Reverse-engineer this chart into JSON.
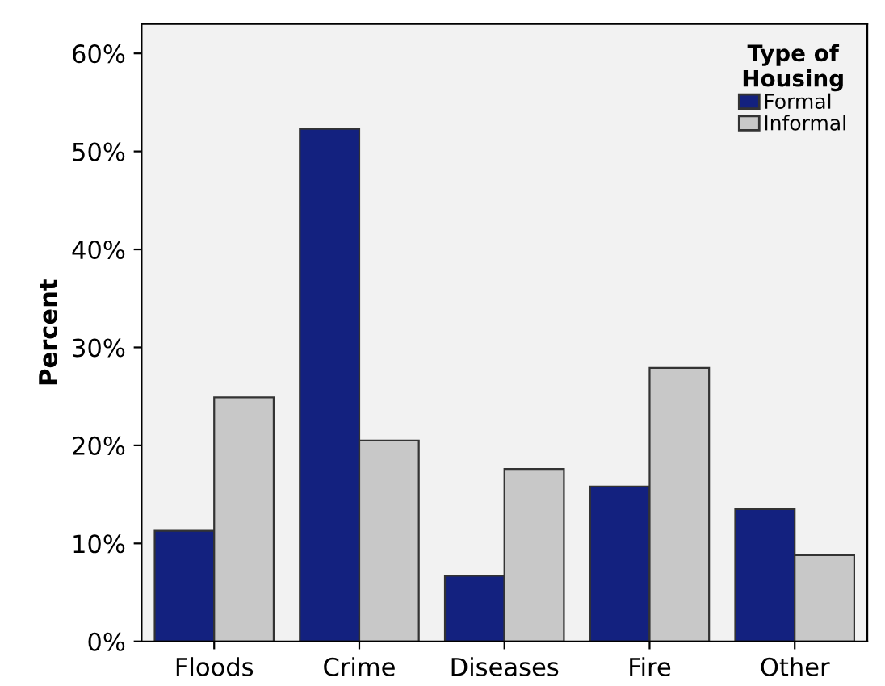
{
  "chart_data": {
    "type": "bar",
    "ylabel": "Percent",
    "legend_title": "Type of\nHousing",
    "legend": "top right",
    "grid": false,
    "categories": [
      "Floods",
      "Crime",
      "Diseases",
      "Fire",
      "Other"
    ],
    "series": [
      {
        "name": "Formal",
        "color": "#13217f",
        "values": [
          11.3,
          52.3,
          6.7,
          15.8,
          13.5
        ]
      },
      {
        "name": "Informal",
        "color": "#c8c8c8",
        "values": [
          24.9,
          20.5,
          17.6,
          27.9,
          8.8
        ]
      }
    ],
    "ylim": [
      0,
      63
    ],
    "yticks": [
      {
        "value": 0,
        "label": "0%"
      },
      {
        "value": 10,
        "label": "10%"
      },
      {
        "value": 20,
        "label": "20%"
      },
      {
        "value": 30,
        "label": "30%"
      },
      {
        "value": 40,
        "label": "40%"
      },
      {
        "value": 50,
        "label": "50%"
      },
      {
        "value": 60,
        "label": "60%"
      }
    ]
  }
}
